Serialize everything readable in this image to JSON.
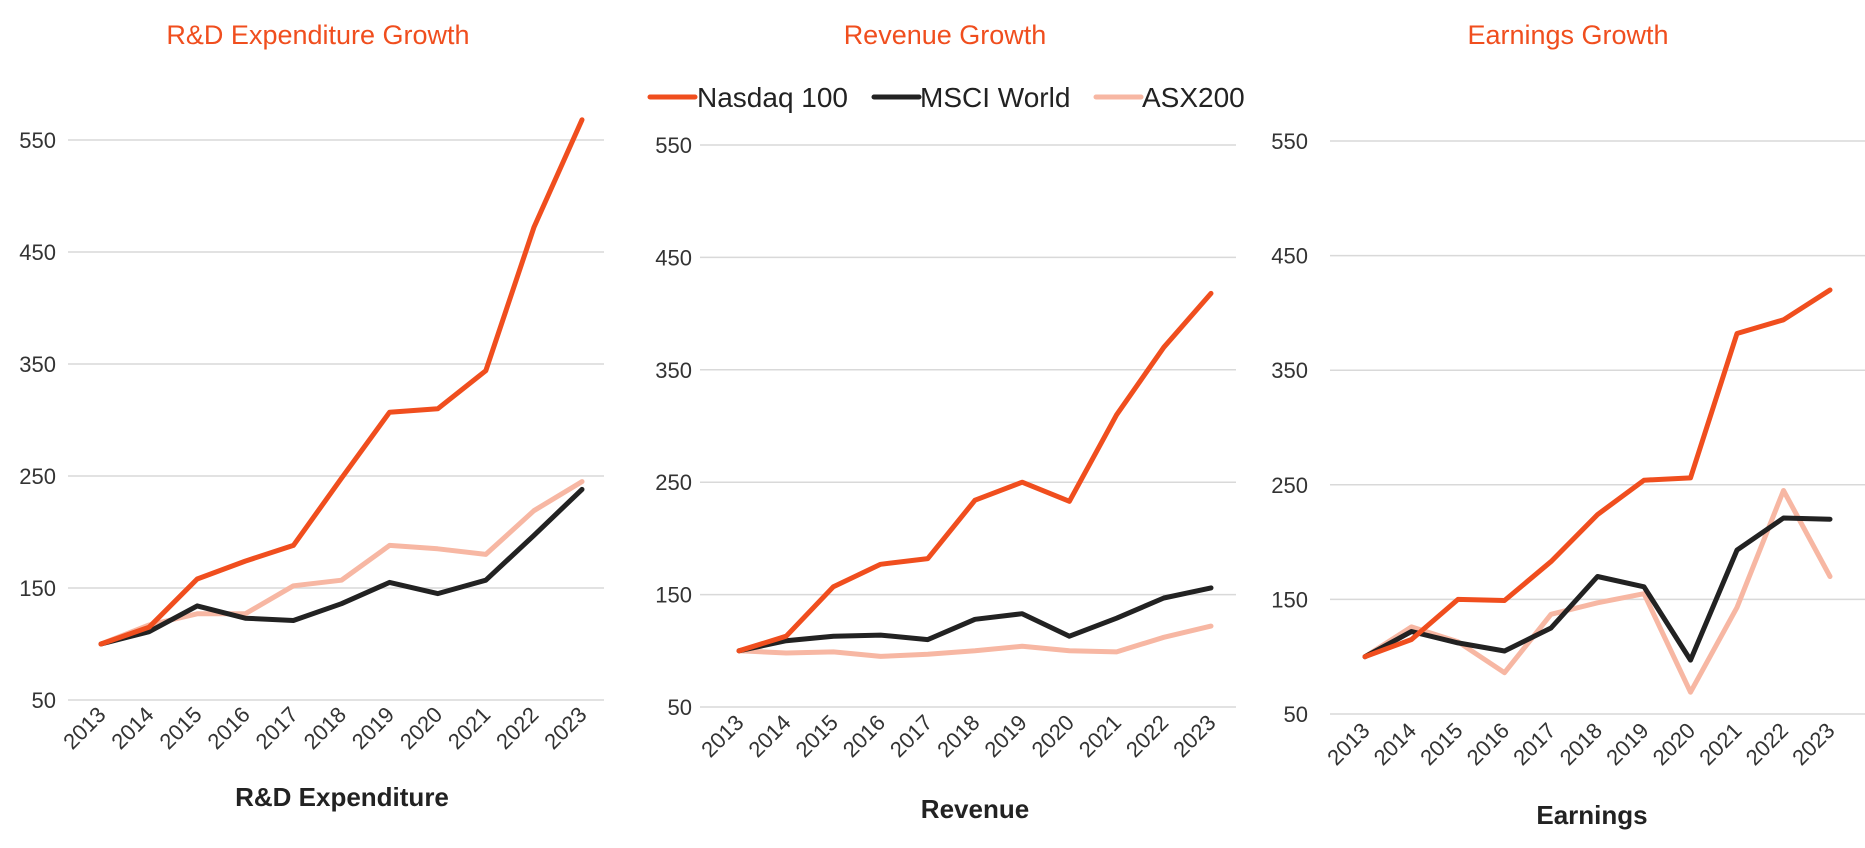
{
  "colors": {
    "title": "#F04E1E",
    "grid": "#D9D9D9"
  },
  "legend": {
    "items": [
      {
        "name": "Nasdaq 100",
        "color": "#F04E1E"
      },
      {
        "name": "MSCI World",
        "color": "#222222"
      },
      {
        "name": "ASX200",
        "color": "#F7B7A3"
      }
    ]
  },
  "chart_data": [
    {
      "type": "line",
      "title": "R&D Expenditure Growth",
      "xlabel": "R&D Expenditure",
      "ylabel": "",
      "ylim": [
        50,
        570
      ],
      "yticks": [
        50,
        150,
        250,
        350,
        450,
        550
      ],
      "grid": true,
      "x": [
        "2013",
        "2014",
        "2015",
        "2016",
        "2017",
        "2018",
        "2019",
        "2020",
        "2021",
        "2022",
        "2023"
      ],
      "series": [
        {
          "name": "Nasdaq 100",
          "color": "#F04E1E",
          "values": [
            100,
            115,
            158,
            174,
            188,
            248,
            307,
            310,
            344,
            472,
            568
          ]
        },
        {
          "name": "MSCI World",
          "color": "#222222",
          "values": [
            100,
            111,
            134,
            123,
            121,
            136,
            155,
            145,
            157,
            197,
            238
          ]
        },
        {
          "name": "ASX200",
          "color": "#F7B7A3",
          "values": [
            100,
            117,
            127,
            127,
            152,
            157,
            188,
            185,
            180,
            219,
            245
          ]
        }
      ]
    },
    {
      "type": "line",
      "title": "Revenue Growth",
      "xlabel": "Revenue",
      "ylabel": "",
      "ylim": [
        50,
        570
      ],
      "yticks": [
        50,
        150,
        250,
        350,
        450,
        550
      ],
      "grid": true,
      "legend_position": "top",
      "x": [
        "2013",
        "2014",
        "2015",
        "2016",
        "2017",
        "2018",
        "2019",
        "2020",
        "2021",
        "2022",
        "2023"
      ],
      "series": [
        {
          "name": "Nasdaq 100",
          "color": "#F04E1E",
          "values": [
            100,
            113,
            157,
            177,
            182,
            234,
            250,
            233,
            310,
            370,
            418
          ]
        },
        {
          "name": "MSCI World",
          "color": "#222222",
          "values": [
            100,
            109,
            113,
            114,
            110,
            128,
            133,
            113,
            129,
            147,
            156
          ]
        },
        {
          "name": "ASX200",
          "color": "#F7B7A3",
          "values": [
            100,
            98,
            99,
            95,
            97,
            100,
            104,
            100,
            99,
            112,
            122
          ]
        }
      ]
    },
    {
      "type": "line",
      "title": "Earnings Growth",
      "xlabel": "Earnings",
      "ylabel": "",
      "ylim": [
        50,
        570
      ],
      "yticks": [
        50,
        150,
        250,
        350,
        450,
        550
      ],
      "grid": true,
      "x": [
        "2013",
        "2014",
        "2015",
        "2016",
        "2017",
        "2018",
        "2019",
        "2020",
        "2021",
        "2022",
        "2023"
      ],
      "series": [
        {
          "name": "Nasdaq 100",
          "color": "#F04E1E",
          "values": [
            100,
            115,
            150,
            149,
            183,
            224,
            254,
            256,
            382,
            394,
            420
          ]
        },
        {
          "name": "MSCI World",
          "color": "#222222",
          "values": [
            100,
            122,
            112,
            105,
            125,
            170,
            161,
            97,
            193,
            221,
            220
          ]
        },
        {
          "name": "ASX200",
          "color": "#F7B7A3",
          "values": [
            100,
            126,
            113,
            86,
            137,
            147,
            155,
            69,
            143,
            245,
            170
          ]
        }
      ]
    }
  ]
}
